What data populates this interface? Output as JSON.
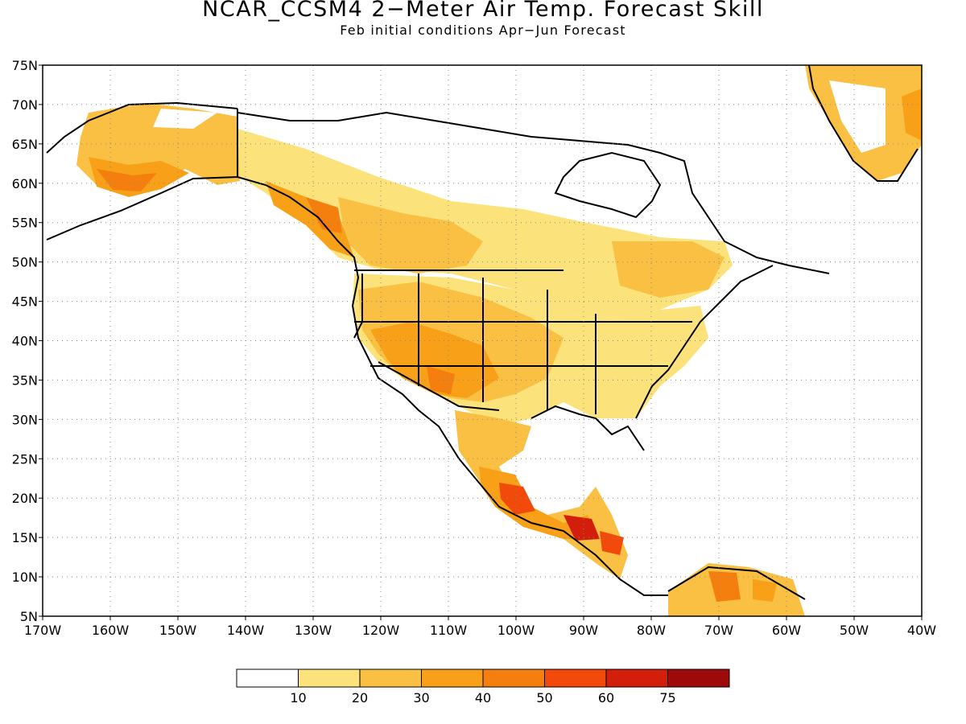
{
  "map": {
    "title": "NCAR_CCSM4 2−Meter Air Temp. Forecast Skill",
    "subtitle": "Feb initial conditions  Apr−Jun Forecast",
    "lat_labels": [
      "75N",
      "70N",
      "65N",
      "60N",
      "55N",
      "50N",
      "45N",
      "40N",
      "35N",
      "30N",
      "25N",
      "20N",
      "15N",
      "10N",
      "5N"
    ],
    "lon_labels": [
      "170W",
      "160W",
      "150W",
      "140W",
      "130W",
      "120W",
      "110W",
      "100W",
      "90W",
      "80W",
      "70W",
      "60W",
      "50W",
      "40W"
    ],
    "lat_range": [
      5,
      75
    ],
    "lon_range": [
      -170,
      -40
    ],
    "grid": "dotted"
  },
  "legend": {
    "labels": [
      "10",
      "20",
      "30",
      "40",
      "50",
      "60",
      "75"
    ],
    "colors": [
      "#ffffff",
      "#fbe27a",
      "#f9c044",
      "#f7a018",
      "#f57f0e",
      "#f24a0a",
      "#d41e0c",
      "#9c0a0a"
    ]
  }
}
